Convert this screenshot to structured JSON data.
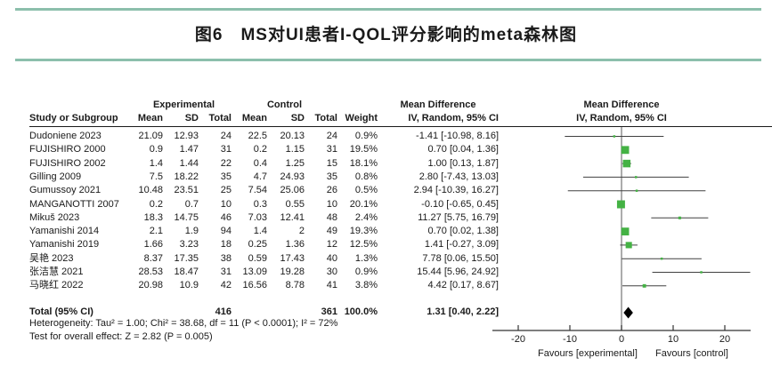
{
  "title": "图6　MS对UI患者I-QOL评分影响的meta森林图",
  "colors": {
    "accent_rule": "#8cbfac",
    "marker_green": "#44b244",
    "diamond": "#000000",
    "zero_line": "#808080",
    "ci_line": "#404040",
    "axis": "#333333",
    "text": "#1a1a1a"
  },
  "table": {
    "col_study": "Study or Subgroup",
    "group_experimental": "Experimental",
    "group_control": "Control",
    "col_mean": "Mean",
    "col_sd": "SD",
    "col_total": "Total",
    "col_weight": "Weight",
    "md_header_line1": "Mean Difference",
    "md_header_line2": "IV, Random, 95% CI"
  },
  "plot": {
    "header_line1": "Mean Difference",
    "header_line2": "IV, Random, 95% CI"
  },
  "chart_data": {
    "type": "table",
    "subtype": "forest_plot_meta_analysis",
    "effect_measure": "Mean Difference (IV, Random, 95% CI)",
    "studies": [
      {
        "study": "Dudoniene 2023",
        "exp_mean": "21.09",
        "exp_sd": "12.93",
        "exp_total": "24",
        "ctrl_mean": "22.5",
        "ctrl_sd": "20.13",
        "ctrl_total": "24",
        "weight": "0.9%",
        "weight_pct": 0.9,
        "md": -1.41,
        "ci_low": -10.98,
        "ci_high": 8.16,
        "md_label": "-1.41 [-10.98, 8.16]"
      },
      {
        "study": "FUJISHIRO 2000",
        "exp_mean": "0.9",
        "exp_sd": "1.47",
        "exp_total": "31",
        "ctrl_mean": "0.2",
        "ctrl_sd": "1.15",
        "ctrl_total": "31",
        "weight": "19.5%",
        "weight_pct": 19.5,
        "md": 0.7,
        "ci_low": 0.04,
        "ci_high": 1.36,
        "md_label": "0.70 [0.04, 1.36]"
      },
      {
        "study": "FUJISHIRO 2002",
        "exp_mean": "1.4",
        "exp_sd": "1.44",
        "exp_total": "22",
        "ctrl_mean": "0.4",
        "ctrl_sd": "1.25",
        "ctrl_total": "15",
        "weight": "18.1%",
        "weight_pct": 18.1,
        "md": 1.0,
        "ci_low": 0.13,
        "ci_high": 1.87,
        "md_label": "1.00 [0.13, 1.87]"
      },
      {
        "study": "Gilling 2009",
        "exp_mean": "7.5",
        "exp_sd": "18.22",
        "exp_total": "35",
        "ctrl_mean": "4.7",
        "ctrl_sd": "24.93",
        "ctrl_total": "35",
        "weight": "0.8%",
        "weight_pct": 0.8,
        "md": 2.8,
        "ci_low": -7.43,
        "ci_high": 13.03,
        "md_label": "2.80 [-7.43, 13.03]"
      },
      {
        "study": "Gumussoy 2021",
        "exp_mean": "10.48",
        "exp_sd": "23.51",
        "exp_total": "25",
        "ctrl_mean": "7.54",
        "ctrl_sd": "25.06",
        "ctrl_total": "26",
        "weight": "0.5%",
        "weight_pct": 0.5,
        "md": 2.94,
        "ci_low": -10.39,
        "ci_high": 16.27,
        "md_label": "2.94 [-10.39, 16.27]"
      },
      {
        "study": "MANGANOTTI 2007",
        "exp_mean": "0.2",
        "exp_sd": "0.7",
        "exp_total": "10",
        "ctrl_mean": "0.3",
        "ctrl_sd": "0.55",
        "ctrl_total": "10",
        "weight": "20.1%",
        "weight_pct": 20.1,
        "md": -0.1,
        "ci_low": -0.65,
        "ci_high": 0.45,
        "md_label": "-0.10 [-0.65, 0.45]"
      },
      {
        "study": "Mikuš 2023",
        "exp_mean": "18.3",
        "exp_sd": "14.75",
        "exp_total": "46",
        "ctrl_mean": "7.03",
        "ctrl_sd": "12.41",
        "ctrl_total": "48",
        "weight": "2.4%",
        "weight_pct": 2.4,
        "md": 11.27,
        "ci_low": 5.75,
        "ci_high": 16.79,
        "md_label": "11.27 [5.75, 16.79]"
      },
      {
        "study": "Yamanishi 2014",
        "exp_mean": "2.1",
        "exp_sd": "1.9",
        "exp_total": "94",
        "ctrl_mean": "1.4",
        "ctrl_sd": "2",
        "ctrl_total": "49",
        "weight": "19.3%",
        "weight_pct": 19.3,
        "md": 0.7,
        "ci_low": 0.02,
        "ci_high": 1.38,
        "md_label": "0.70 [0.02, 1.38]"
      },
      {
        "study": "Yamanishi 2019",
        "exp_mean": "1.66",
        "exp_sd": "3.23",
        "exp_total": "18",
        "ctrl_mean": "0.25",
        "ctrl_sd": "1.36",
        "ctrl_total": "12",
        "weight": "12.5%",
        "weight_pct": 12.5,
        "md": 1.41,
        "ci_low": -0.27,
        "ci_high": 3.09,
        "md_label": "1.41 [-0.27, 3.09]"
      },
      {
        "study": "吴艳 2023",
        "exp_mean": "8.37",
        "exp_sd": "17.35",
        "exp_total": "38",
        "ctrl_mean": "0.59",
        "ctrl_sd": "17.43",
        "ctrl_total": "40",
        "weight": "1.3%",
        "weight_pct": 1.3,
        "md": 7.78,
        "ci_low": 0.06,
        "ci_high": 15.5,
        "md_label": "7.78 [0.06, 15.50]"
      },
      {
        "study": "张洁慧 2021",
        "exp_mean": "28.53",
        "exp_sd": "18.47",
        "exp_total": "31",
        "ctrl_mean": "13.09",
        "ctrl_sd": "19.28",
        "ctrl_total": "30",
        "weight": "0.9%",
        "weight_pct": 0.9,
        "md": 15.44,
        "ci_low": 5.96,
        "ci_high": 24.92,
        "md_label": "15.44 [5.96, 24.92]"
      },
      {
        "study": "马晓红 2022",
        "exp_mean": "20.98",
        "exp_sd": "10.9",
        "exp_total": "42",
        "ctrl_mean": "16.56",
        "ctrl_sd": "8.78",
        "ctrl_total": "41",
        "weight": "3.8%",
        "weight_pct": 3.8,
        "md": 4.42,
        "ci_low": 0.17,
        "ci_high": 8.67,
        "md_label": "4.42 [0.17, 8.67]"
      }
    ],
    "total": {
      "label": "Total (95% CI)",
      "exp_total": "416",
      "ctrl_total": "361",
      "weight": "100.0%",
      "md": 1.31,
      "ci_low": 0.4,
      "ci_high": 2.22,
      "md_label": "1.31 [0.40, 2.22]"
    },
    "heterogeneity": "Heterogeneity: Tau² = 1.00; Chi² = 38.68, df = 11 (P < 0.0001); I² = 72%",
    "overall_effect": "Test for overall effect: Z = 2.82 (P = 0.005)",
    "axis": {
      "min": -25,
      "max": 25,
      "ticks": [
        -20,
        -10,
        0,
        10,
        20
      ]
    },
    "xlabel_left": "Favours [experimental]",
    "xlabel_right": "Favours [control]"
  }
}
